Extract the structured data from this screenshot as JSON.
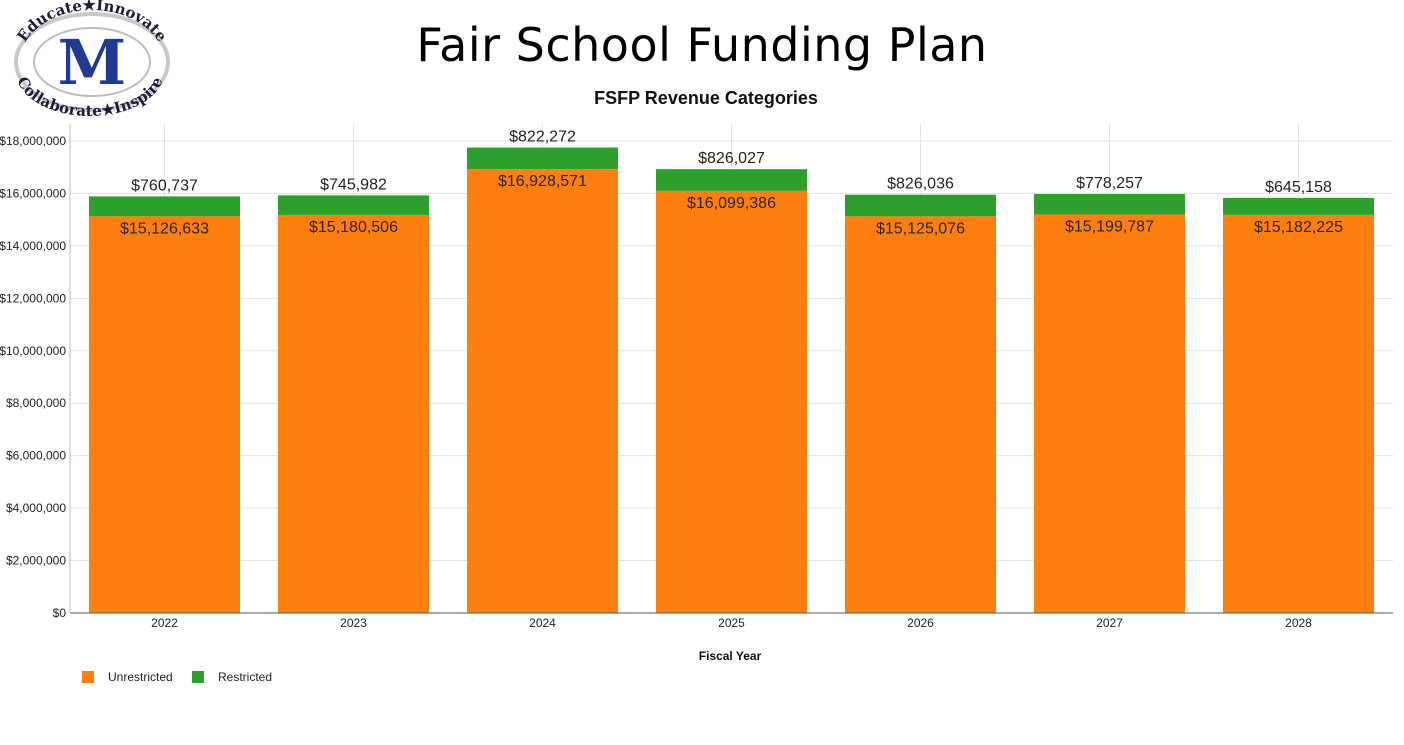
{
  "header": {
    "title": "Fair School Funding Plan",
    "logo": {
      "top_text": "Educate★Innovate",
      "bottom_text": "Collaborate★Inspire",
      "letter": "M",
      "colors": {
        "ring": "#d9d9d9",
        "center": "#1f3a93",
        "text": "#1b1b3a"
      }
    }
  },
  "chart_data": {
    "type": "bar",
    "stacked": true,
    "title": "FSFP Revenue Categories",
    "xlabel": "Fiscal Year",
    "ylabel": "",
    "categories": [
      "2022",
      "2023",
      "2024",
      "2025",
      "2026",
      "2027",
      "2028"
    ],
    "series": [
      {
        "name": "Unrestricted",
        "color": "#ff7f0e",
        "values": [
          15126633,
          15180506,
          16928571,
          16099386,
          15125076,
          15199787,
          15182225
        ],
        "labels": [
          "$15,126,633",
          "$15,180,506",
          "$16,928,571",
          "$16,099,386",
          "$15,125,076",
          "$15,199,787",
          "$15,182,225"
        ]
      },
      {
        "name": "Restricted",
        "color": "#2ca02c",
        "values": [
          760737,
          745982,
          822272,
          826027,
          826036,
          778257,
          645158
        ],
        "labels": [
          "$760,737",
          "$745,982",
          "$822,272",
          "$826,027",
          "$826,036",
          "$778,257",
          "$645,158"
        ]
      }
    ],
    "ylim": [
      0,
      18000000
    ],
    "yticks": [
      0,
      2000000,
      4000000,
      6000000,
      8000000,
      10000000,
      12000000,
      14000000,
      16000000,
      18000000
    ],
    "ytick_labels": [
      "$0",
      "$2,000,000",
      "$4,000,000",
      "$6,000,000",
      "$8,000,000",
      "$10,000,000",
      "$12,000,000",
      "$14,000,000",
      "$16,000,000",
      "$18,000,000"
    ],
    "grid": true,
    "legend": "bottom-left"
  }
}
